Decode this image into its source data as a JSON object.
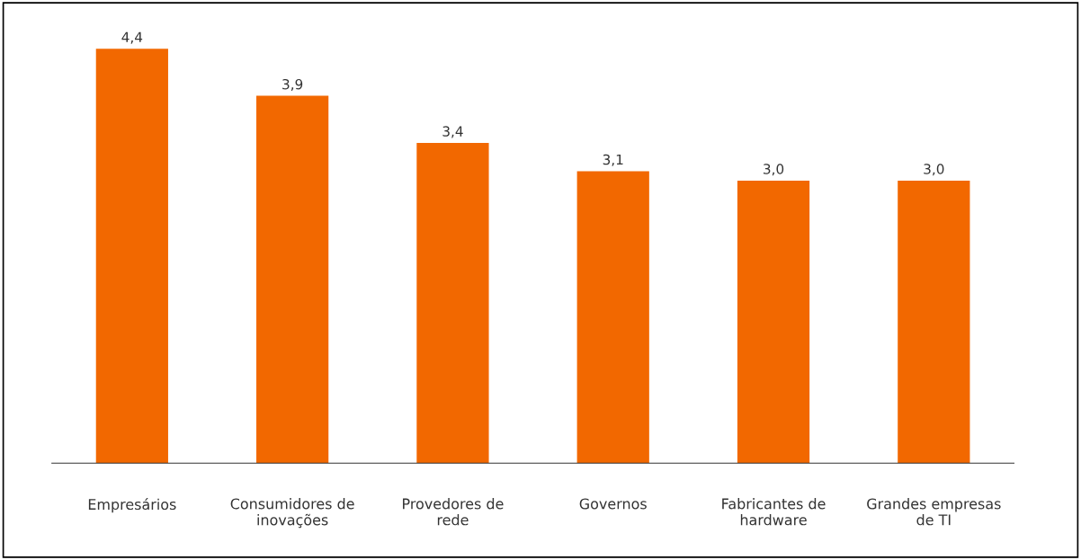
{
  "chart_data": {
    "type": "bar",
    "categories": [
      "Empresários",
      "Consumidores de\ninovações",
      "Provedores de\nrede",
      "Governos",
      "Fabricantes de\nhardware",
      "Grandes empresas\nde TI"
    ],
    "values": [
      4.4,
      3.9,
      3.4,
      3.1,
      3.0,
      3.0
    ],
    "value_labels": [
      "4,4",
      "3,9",
      "3,4",
      "3,1",
      "3,0",
      "3,0"
    ],
    "color": "#f26800",
    "tick_labels": "x",
    "grid": false,
    "legend": false
  }
}
